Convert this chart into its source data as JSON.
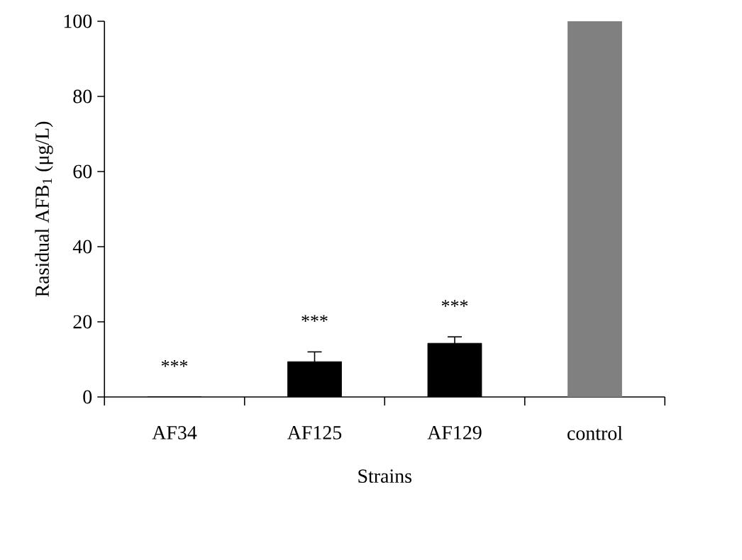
{
  "chart_data": {
    "type": "bar",
    "categories": [
      "AF34",
      "AF125",
      "AF129",
      "control"
    ],
    "values": [
      0,
      9.4,
      14.3,
      100
    ],
    "errors": [
      null,
      2.6,
      1.7,
      null
    ],
    "colors": [
      "#000000",
      "#000000",
      "#000000",
      "#808080"
    ],
    "xlabel": "Strains",
    "ylabel": "Rasidual AFB$_{1}$ (μg/L)",
    "ylim": [
      0,
      100
    ],
    "yticks": [
      0,
      20,
      40,
      60,
      80,
      100
    ],
    "annotations": [
      "***",
      "***",
      "***"
    ]
  }
}
